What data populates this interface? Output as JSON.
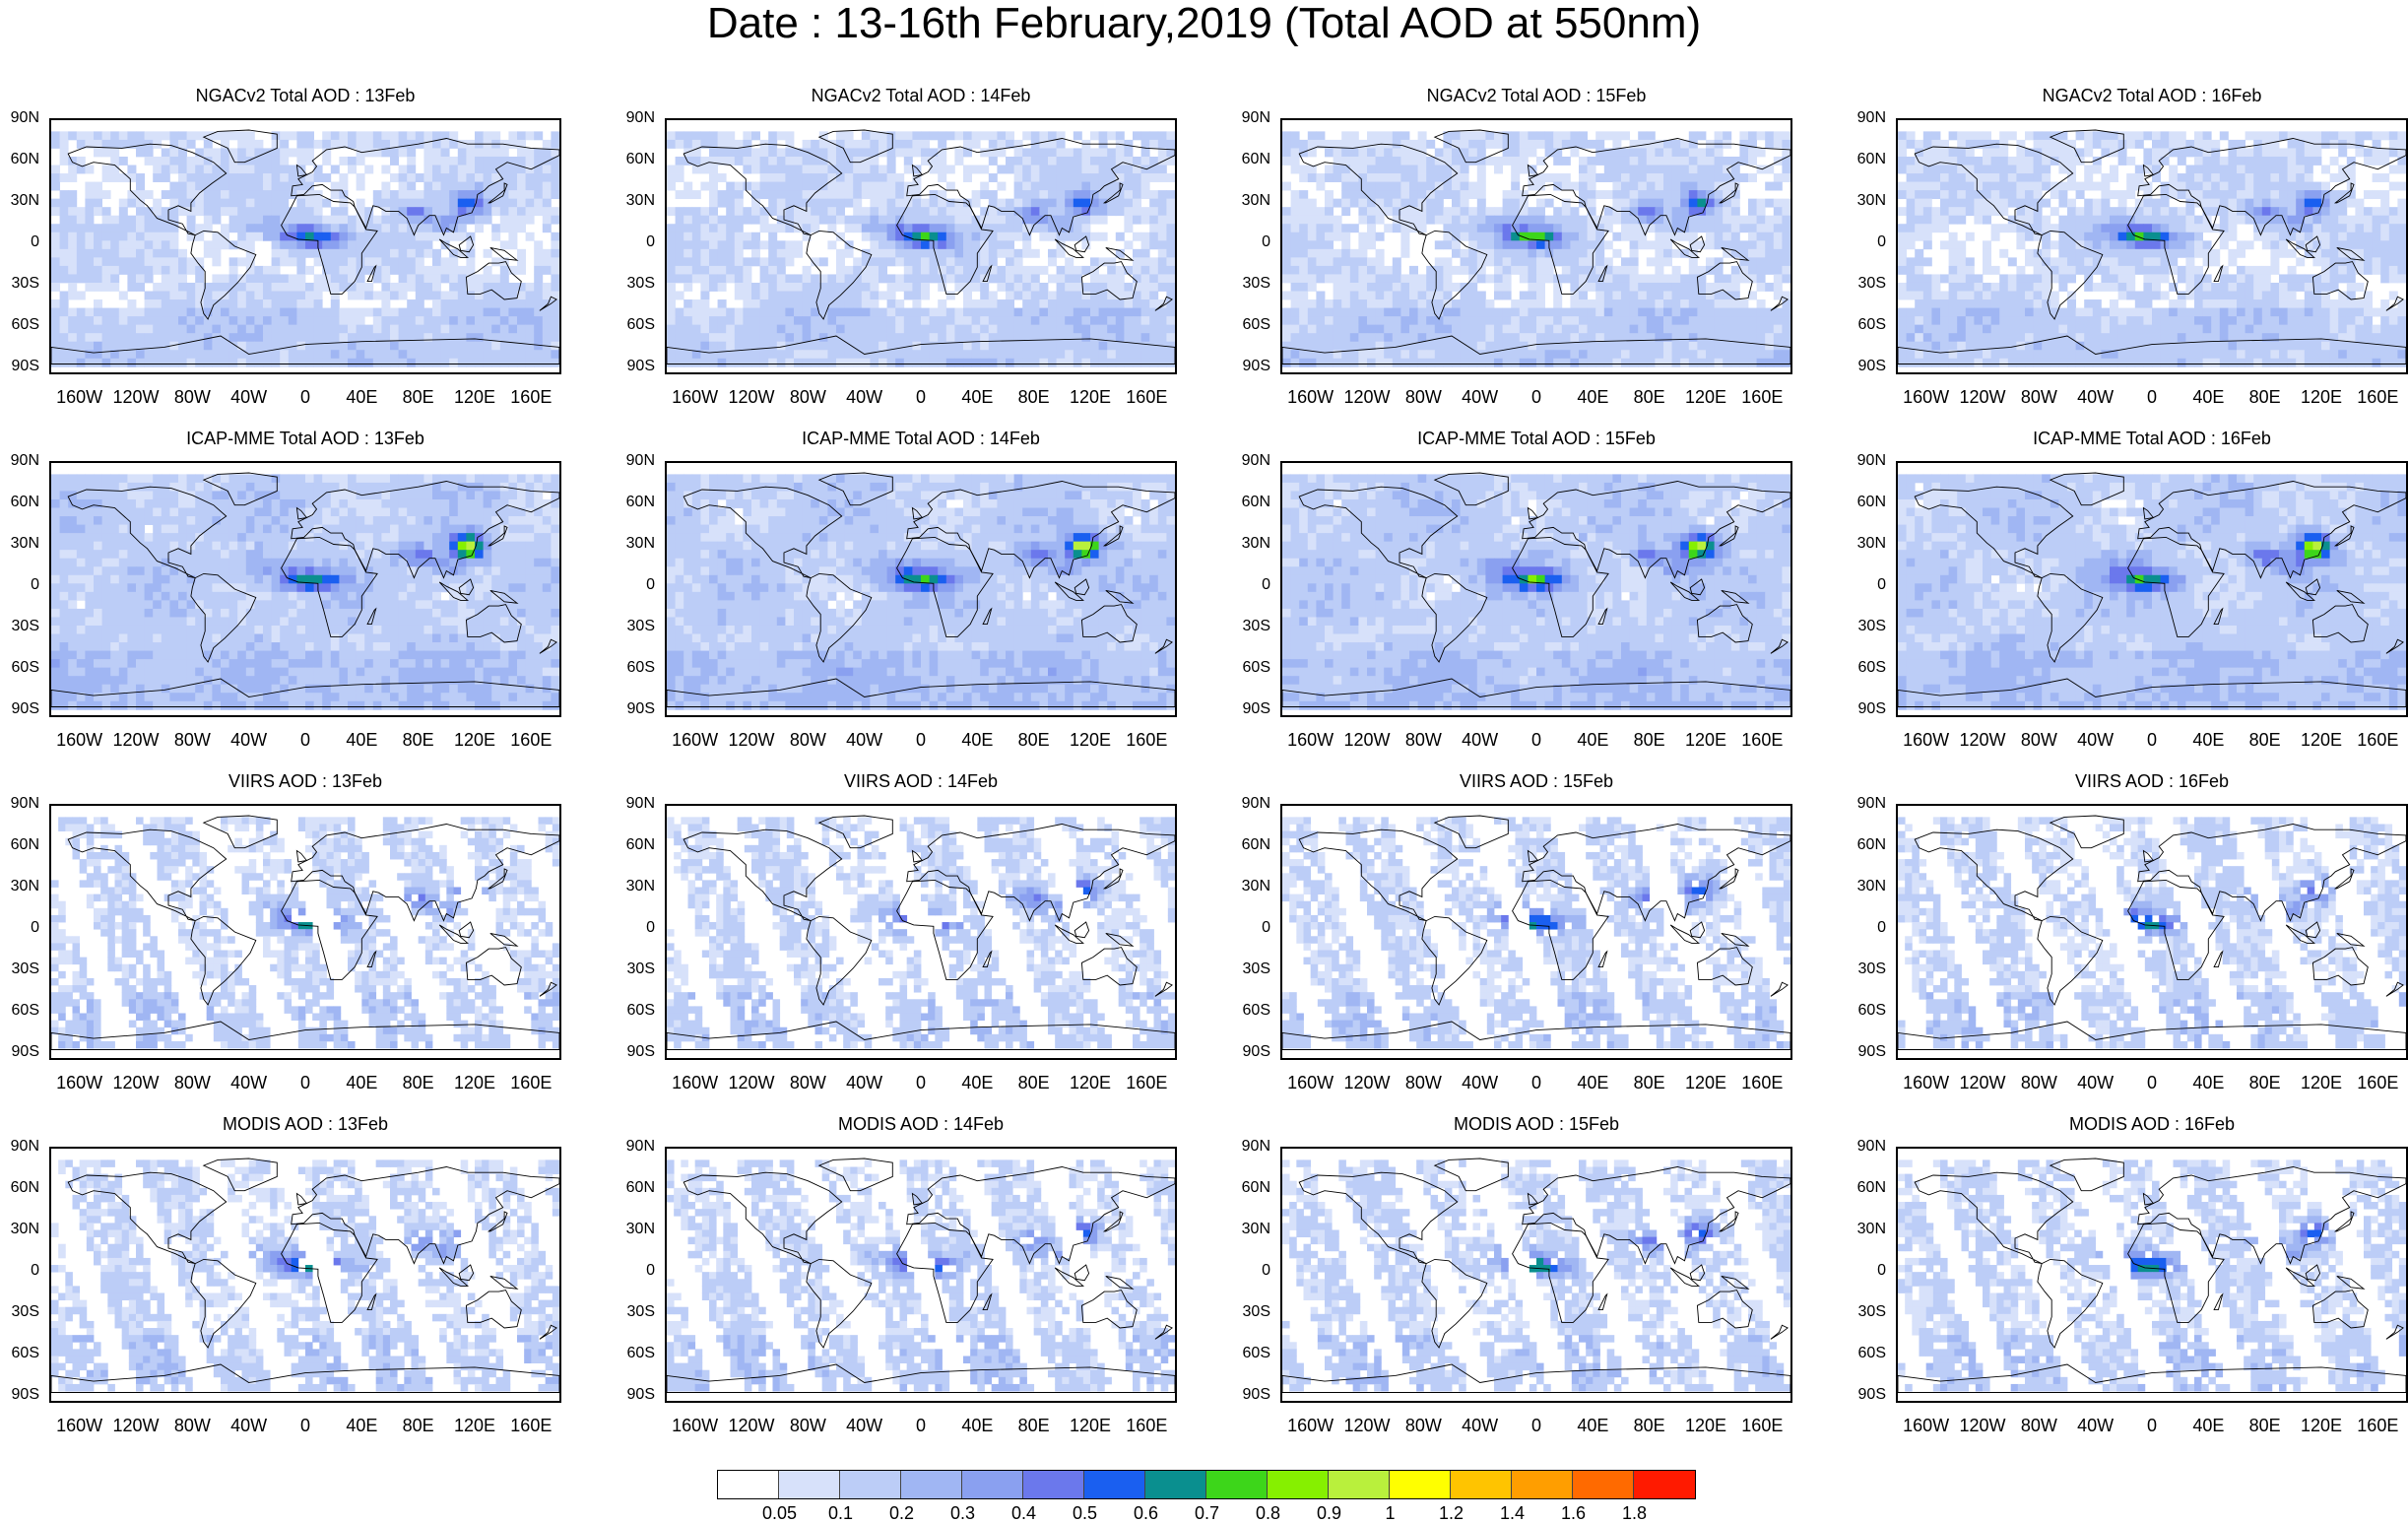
{
  "title": "Date : 13-16th February,2019 (Total AOD at 550nm)",
  "lat_labels": [
    "90N",
    "60N",
    "30N",
    "0",
    "30S",
    "60S",
    "90S"
  ],
  "lon_labels": [
    "160W",
    "120W",
    "80W",
    "40W",
    "0",
    "40E",
    "80E",
    "120E",
    "160E"
  ],
  "panels": [
    {
      "title": "NGACv2 Total AOD : 13Feb",
      "product": "ngac",
      "day": "13Feb"
    },
    {
      "title": "NGACv2 Total AOD : 14Feb",
      "product": "ngac",
      "day": "14Feb"
    },
    {
      "title": "NGACv2 Total AOD : 15Feb",
      "product": "ngac",
      "day": "15Feb"
    },
    {
      "title": "NGACv2 Total AOD : 16Feb",
      "product": "ngac",
      "day": "16Feb"
    },
    {
      "title": "ICAP-MME Total AOD : 13Feb",
      "product": "icap",
      "day": "13Feb"
    },
    {
      "title": "ICAP-MME Total AOD : 14Feb",
      "product": "icap",
      "day": "14Feb"
    },
    {
      "title": "ICAP-MME Total AOD : 15Feb",
      "product": "icap",
      "day": "15Feb"
    },
    {
      "title": "ICAP-MME Total AOD : 16Feb",
      "product": "icap",
      "day": "16Feb"
    },
    {
      "title": "VIIRS AOD : 13Feb",
      "product": "viirs",
      "day": "13Feb"
    },
    {
      "title": "VIIRS AOD : 14Feb",
      "product": "viirs",
      "day": "14Feb"
    },
    {
      "title": "VIIRS AOD : 15Feb",
      "product": "viirs",
      "day": "15Feb"
    },
    {
      "title": "VIIRS AOD : 16Feb",
      "product": "viirs",
      "day": "16Feb"
    },
    {
      "title": "MODIS AOD : 13Feb",
      "product": "modis",
      "day": "13Feb"
    },
    {
      "title": "MODIS AOD : 14Feb",
      "product": "modis",
      "day": "14Feb"
    },
    {
      "title": "MODIS AOD : 15Feb",
      "product": "modis",
      "day": "15Feb"
    },
    {
      "title": "MODIS AOD : 16Feb",
      "product": "modis",
      "day": "16Feb"
    }
  ],
  "colorbar": {
    "labels": [
      "0.05",
      "0.1",
      "0.2",
      "0.3",
      "0.4",
      "0.5",
      "0.6",
      "0.7",
      "0.8",
      "0.9",
      "1",
      "1.2",
      "1.4",
      "1.6",
      "1.8"
    ],
    "colors": [
      "#ffffff",
      "#d7e1fa",
      "#bccdf7",
      "#a0b6f3",
      "#8aa0f0",
      "#6b78ec",
      "#1a5ff0",
      "#0a8f8f",
      "#3dd61a",
      "#86f000",
      "#b9f03c",
      "#ffff00",
      "#ffc400",
      "#ff9e00",
      "#ff6a00",
      "#ff1a00"
    ]
  },
  "continent_color": "#000000"
}
